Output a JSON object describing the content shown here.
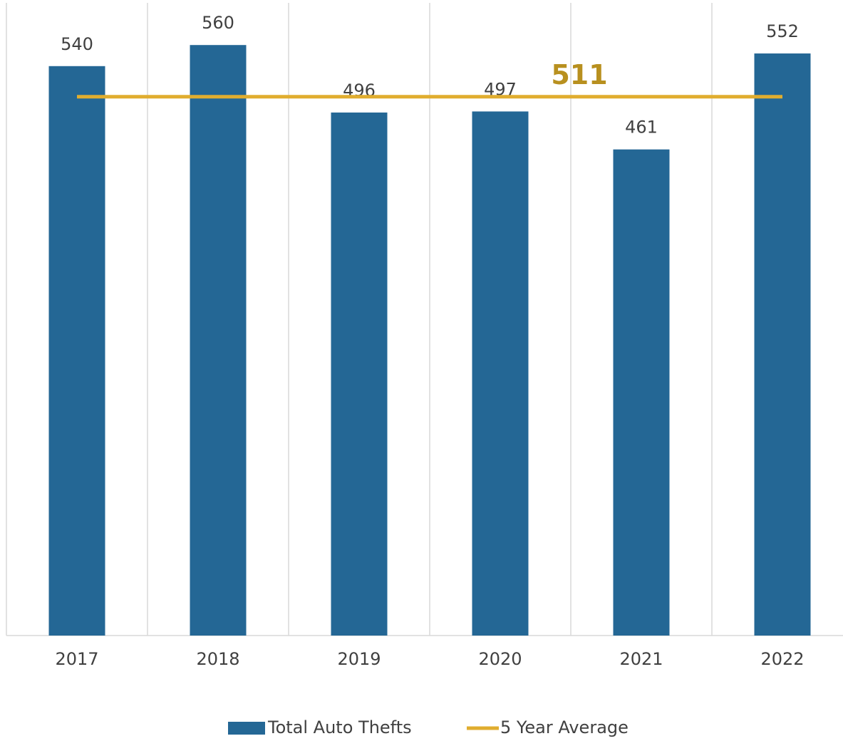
{
  "chart_data": {
    "type": "bar",
    "categories": [
      "2017",
      "2018",
      "2019",
      "2020",
      "2021",
      "2022"
    ],
    "series": [
      {
        "name": "Total Auto Thefts",
        "type": "bar",
        "color": "#246795",
        "values": [
          540,
          560,
          496,
          497,
          461,
          552
        ]
      },
      {
        "name": "5 Year Average",
        "type": "line",
        "color": "#e0ad2f",
        "label_color": "#b8901f",
        "values": [
          511,
          511,
          511,
          511,
          511,
          511
        ]
      }
    ],
    "ylim": [
      0,
      600
    ],
    "legend": "bottom"
  }
}
